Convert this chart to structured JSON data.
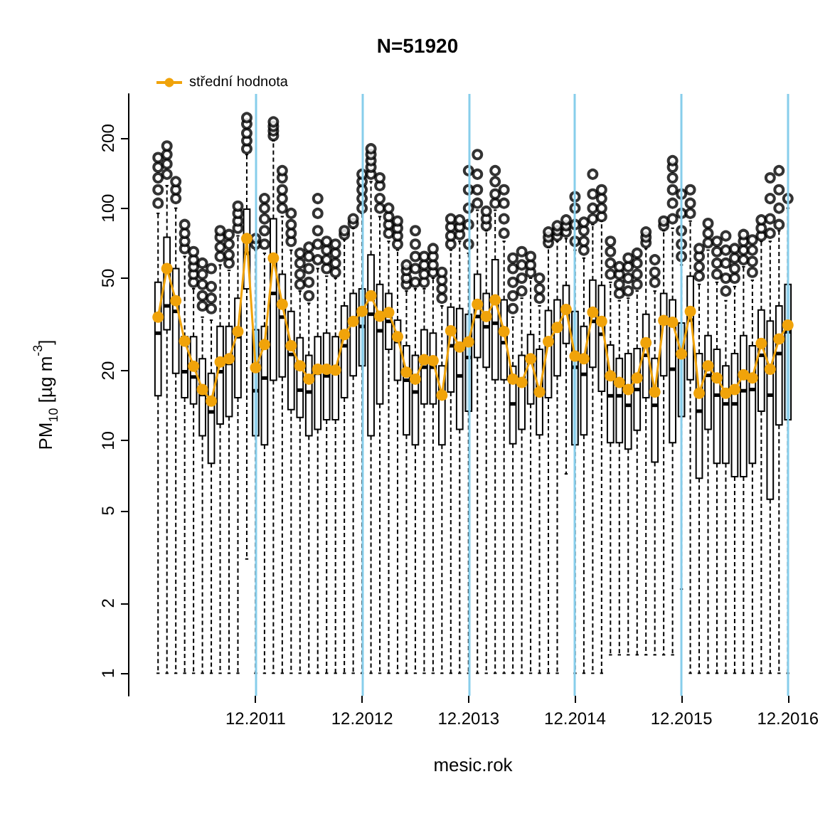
{
  "chart_data": {
    "type": "box",
    "title": "N=51920",
    "xlabel": "mesic.rok",
    "ylabel": "PM$_{10}$ [µg m$^{-3}$]",
    "categories": [
      null,
      null,
      null,
      null,
      null,
      null,
      null,
      null,
      null,
      null,
      null,
      "12.2011",
      null,
      null,
      null,
      null,
      null,
      null,
      null,
      null,
      null,
      null,
      null,
      "12.2012",
      null,
      null,
      null,
      null,
      null,
      null,
      null,
      null,
      null,
      null,
      null,
      "12.2013",
      null,
      null,
      null,
      null,
      null,
      null,
      null,
      null,
      null,
      null,
      null,
      "12.2014",
      null,
      null,
      null,
      null,
      null,
      null,
      null,
      null,
      null,
      null,
      null,
      "12.2015",
      null,
      null,
      null,
      null,
      null,
      null,
      null,
      null,
      null,
      null,
      null,
      "12.2016"
    ],
    "boxes": [
      {
        "low": 1,
        "q1": 15.6,
        "median": 29,
        "q3": 48,
        "high": 95,
        "outliers": [
          105,
          120,
          135,
          150,
          165
        ]
      },
      {
        "low": 1,
        "q1": 30,
        "median": 38,
        "q3": 75,
        "high": 125,
        "outliers": [
          140,
          155,
          170,
          185
        ]
      },
      {
        "low": 1,
        "q1": 19.5,
        "median": 36,
        "q3": 55,
        "high": 100,
        "outliers": [
          110,
          120,
          130
        ]
      },
      {
        "low": 1,
        "q1": 15.3,
        "median": 19.8,
        "q3": 28,
        "high": 62,
        "outliers": [
          67,
          72,
          78,
          85
        ]
      },
      {
        "low": 1,
        "q1": 14.4,
        "median": 18.8,
        "q3": 28,
        "high": 45,
        "outliers": [
          48,
          52,
          56,
          60,
          65
        ]
      },
      {
        "low": 1,
        "q1": 10.5,
        "median": 15.8,
        "q3": 22.5,
        "high": 34,
        "outliers": [
          38,
          42,
          47,
          52,
          58
        ]
      },
      {
        "low": 1,
        "q1": 8,
        "median": 13.3,
        "q3": 19.5,
        "high": 33,
        "outliers": [
          37,
          41,
          46,
          55
        ]
      },
      {
        "low": 1,
        "q1": 11.8,
        "median": 19.8,
        "q3": 31,
        "high": 57,
        "outliers": [
          62,
          68,
          75,
          80
        ]
      },
      {
        "low": 1,
        "q1": 12.7,
        "median": 21.5,
        "q3": 31,
        "high": 54,
        "outliers": [
          58,
          63,
          70,
          77
        ]
      },
      {
        "low": 1,
        "q1": 15.3,
        "median": 28,
        "q3": 41,
        "high": 76,
        "outliers": [
          82,
          88,
          95,
          102
        ]
      },
      {
        "low": 3.1,
        "q1": 45,
        "median": 64,
        "q3": 99,
        "high": 170,
        "outliers": [
          180,
          195,
          210,
          230,
          245
        ]
      },
      {
        "low": 1,
        "q1": 10.5,
        "median": 16.4,
        "q3": 30,
        "high": 66,
        "outliers": [
          70,
          74
        ]
      },
      {
        "low": 1,
        "q1": 9.6,
        "median": 18.6,
        "q3": 31,
        "high": 64,
        "outliers": [
          70,
          80,
          90,
          100,
          110
        ]
      },
      {
        "low": 1,
        "q1": 18.2,
        "median": 43,
        "q3": 90,
        "high": 195,
        "outliers": [
          205,
          215,
          225,
          235
        ]
      },
      {
        "low": 1,
        "q1": 18.8,
        "median": 34,
        "q3": 52,
        "high": 92,
        "outliers": [
          100,
          110,
          120,
          135,
          145
        ]
      },
      {
        "low": 1,
        "q1": 13.6,
        "median": 23.5,
        "q3": 36,
        "high": 66,
        "outliers": [
          72,
          78,
          85,
          95
        ]
      },
      {
        "low": 1,
        "q1": 12.6,
        "median": 16.5,
        "q3": 27.7,
        "high": 44,
        "outliers": [
          47,
          52,
          58,
          64
        ]
      },
      {
        "low": 1,
        "q1": 10.5,
        "median": 16.2,
        "q3": 23.3,
        "high": 39,
        "outliers": [
          42,
          48,
          55,
          62,
          68
        ]
      },
      {
        "low": 1,
        "q1": 11.2,
        "median": 19.5,
        "q3": 28,
        "high": 55,
        "outliers": [
          60,
          70,
          80,
          95,
          110
        ]
      },
      {
        "low": 1,
        "q1": 12.3,
        "median": 19,
        "q3": 29,
        "high": 51,
        "outliers": [
          55,
          60,
          66,
          72
        ]
      },
      {
        "low": 1,
        "q1": 12.3,
        "median": 19.5,
        "q3": 28,
        "high": 50,
        "outliers": [
          53,
          58,
          64,
          70
        ]
      },
      {
        "low": 1,
        "q1": 15.3,
        "median": 25.6,
        "q3": 38,
        "high": 73,
        "outliers": [
          77,
          80
        ]
      },
      {
        "low": 1,
        "q1": 19,
        "median": 33,
        "q3": 43,
        "high": 82,
        "outliers": [
          86,
          90
        ]
      },
      {
        "low": 1,
        "q1": 21,
        "median": 31,
        "q3": 45,
        "high": 95,
        "outliers": [
          100,
          110,
          120,
          130,
          140
        ]
      },
      {
        "low": 1,
        "q1": 10.5,
        "median": 35,
        "q3": 63,
        "high": 130,
        "outliers": [
          140,
          150,
          160,
          170,
          180
        ]
      },
      {
        "low": 1,
        "q1": 14.4,
        "median": 29.7,
        "q3": 47,
        "high": 92,
        "outliers": [
          100,
          110,
          125,
          135
        ]
      },
      {
        "low": 1,
        "q1": 24.7,
        "median": 32.6,
        "q3": 43,
        "high": 72,
        "outliers": [
          78,
          85,
          92,
          100
        ]
      },
      {
        "low": 1,
        "q1": 18.2,
        "median": 26.7,
        "q3": 33,
        "high": 66,
        "outliers": [
          70,
          76,
          82,
          88
        ]
      },
      {
        "low": 1,
        "q1": 10.6,
        "median": 18.2,
        "q3": 25.6,
        "high": 44,
        "outliers": [
          47,
          50,
          54,
          57
        ]
      },
      {
        "low": 1,
        "q1": 9.6,
        "median": 16.2,
        "q3": 23.3,
        "high": 45,
        "outliers": [
          48,
          55,
          62,
          70,
          80
        ]
      },
      {
        "low": 1,
        "q1": 14.4,
        "median": 20.7,
        "q3": 30,
        "high": 45,
        "outliers": [
          48,
          52,
          57,
          62
        ]
      },
      {
        "low": 1,
        "q1": 14.4,
        "median": 20.7,
        "q3": 29,
        "high": 50,
        "outliers": [
          53,
          57,
          62,
          67
        ]
      },
      {
        "low": 1,
        "q1": 9.6,
        "median": 15.6,
        "q3": 21,
        "high": 38,
        "outliers": [
          41,
          45,
          49,
          53
        ]
      },
      {
        "low": 1,
        "q1": 16.2,
        "median": 25.6,
        "q3": 37.5,
        "high": 66,
        "outliers": [
          70,
          76,
          83,
          90
        ]
      },
      {
        "low": 1,
        "q1": 11.2,
        "median": 19,
        "q3": 37,
        "high": 72,
        "outliers": [
          77,
          83,
          89
        ]
      },
      {
        "low": 1,
        "q1": 13.4,
        "median": 22.8,
        "q3": 35,
        "high": 64,
        "outliers": [
          70,
          85,
          100,
          120,
          145
        ]
      },
      {
        "low": 1,
        "q1": 22.8,
        "median": 34.2,
        "q3": 52,
        "high": 98,
        "outliers": [
          105,
          120,
          140,
          170
        ]
      },
      {
        "low": 1,
        "q1": 20.7,
        "median": 30.9,
        "q3": 43,
        "high": 80,
        "outliers": [
          84,
          90,
          97
        ]
      },
      {
        "low": 1,
        "q1": 18.3,
        "median": 32,
        "q3": 60,
        "high": 98,
        "outliers": [
          105,
          115,
          130,
          145
        ]
      },
      {
        "low": 1,
        "q1": 18.3,
        "median": 26.4,
        "q3": 40.3,
        "high": 72,
        "outliers": [
          78,
          90,
          105,
          120
        ]
      },
      {
        "low": 1,
        "q1": 9.7,
        "median": 14.4,
        "q3": 20.9,
        "high": 34,
        "outliers": [
          37,
          42,
          48,
          55,
          61
        ]
      },
      {
        "low": 1,
        "q1": 11.2,
        "median": 18.2,
        "q3": 23.3,
        "high": 41,
        "outliers": [
          44,
          50,
          57,
          65
        ]
      },
      {
        "low": 1,
        "q1": 14.4,
        "median": 21.9,
        "q3": 28.6,
        "high": 50,
        "outliers": [
          53,
          57,
          62
        ]
      },
      {
        "low": 1,
        "q1": 10.6,
        "median": 15.9,
        "q3": 24.7,
        "high": 38,
        "outliers": [
          41,
          45,
          50
        ]
      },
      {
        "low": 1,
        "q1": 15.3,
        "median": 26.7,
        "q3": 36.3,
        "high": 68,
        "outliers": [
          71,
          75,
          79
        ]
      },
      {
        "low": 1,
        "q1": 19,
        "median": 31.3,
        "q3": 40.3,
        "high": 72,
        "outliers": [
          76,
          80,
          84
        ]
      },
      {
        "low": 7.2,
        "q1": 26.2,
        "median": 35.5,
        "q3": 46.5,
        "high": 74,
        "outliers": [
          79,
          84,
          89
        ]
      },
      {
        "low": 1,
        "q1": 9.6,
        "median": 20.7,
        "q3": 36,
        "high": 66,
        "outliers": [
          72,
          85,
          100,
          112
        ]
      },
      {
        "low": 1,
        "q1": 10.6,
        "median": 19.3,
        "q3": 31,
        "high": 61,
        "outliers": [
          66,
          72,
          80,
          87
        ]
      },
      {
        "low": 1,
        "q1": 20.7,
        "median": 32.6,
        "q3": 49,
        "high": 85,
        "outliers": [
          90,
          100,
          115,
          140
        ]
      },
      {
        "low": 1,
        "q1": 16.3,
        "median": 28.7,
        "q3": 46.5,
        "high": 88,
        "outliers": [
          92,
          100,
          110,
          120
        ]
      },
      {
        "low": 1.2,
        "q1": 9.8,
        "median": 15.6,
        "q3": 25.8,
        "high": 48,
        "outliers": [
          52,
          58,
          65,
          72
        ]
      },
      {
        "low": 1.2,
        "q1": 9.8,
        "median": 15.6,
        "q3": 22.6,
        "high": 40,
        "outliers": [
          43,
          47,
          52,
          56
        ]
      },
      {
        "low": 1.2,
        "q1": 9.2,
        "median": 14.2,
        "q3": 23.7,
        "high": 41,
        "outliers": [
          44,
          50,
          56,
          61
        ]
      },
      {
        "low": 1.2,
        "q1": 11.1,
        "median": 16.6,
        "q3": 24.9,
        "high": 44,
        "outliers": [
          47,
          52,
          58,
          64
        ]
      },
      {
        "low": 1.2,
        "q1": 15.3,
        "median": 23.3,
        "q3": 35,
        "high": 67,
        "outliers": [
          71,
          75,
          79
        ]
      },
      {
        "low": 1.2,
        "q1": 8.1,
        "median": 14.2,
        "q3": 22.6,
        "high": 44,
        "outliers": [
          48,
          53,
          60
        ]
      },
      {
        "low": 1.2,
        "q1": 19,
        "median": 32.6,
        "q3": 43,
        "high": 80,
        "outliers": [
          84,
          88
        ]
      },
      {
        "low": 1.2,
        "q1": 9.8,
        "median": 20.3,
        "q3": 40.3,
        "high": 82,
        "outliers": [
          90,
          105,
          120,
          135,
          150,
          160
        ]
      },
      {
        "low": 2.3,
        "q1": 12.7,
        "median": 23,
        "q3": 32.1,
        "high": 57,
        "outliers": [
          62,
          70,
          80,
          95,
          115
        ]
      },
      {
        "low": 1,
        "q1": 18.3,
        "median": 33,
        "q3": 51,
        "high": 88,
        "outliers": [
          95,
          105,
          120
        ]
      },
      {
        "low": 1,
        "q1": 6.9,
        "median": 13.4,
        "q3": 23.7,
        "high": 47,
        "outliers": [
          51,
          56,
          62,
          67
        ]
      },
      {
        "low": 1,
        "q1": 11.2,
        "median": 19.1,
        "q3": 28.3,
        "high": 66,
        "outliers": [
          71,
          78,
          86
        ]
      },
      {
        "low": 1,
        "q1": 8,
        "median": 15.7,
        "q3": 24.7,
        "high": 48,
        "outliers": [
          52,
          58,
          65,
          72
        ]
      },
      {
        "low": 1,
        "q1": 8,
        "median": 14.4,
        "q3": 21,
        "high": 40,
        "outliers": [
          44,
          50,
          58,
          66,
          76
        ]
      },
      {
        "low": 1,
        "q1": 7,
        "median": 14.4,
        "q3": 23.7,
        "high": 46,
        "outliers": [
          50,
          55,
          61,
          67
        ]
      },
      {
        "low": 1,
        "q1": 7,
        "median": 16.4,
        "q3": 28.3,
        "high": 56,
        "outliers": [
          60,
          66,
          72,
          77
        ]
      },
      {
        "low": 1,
        "q1": 8,
        "median": 16.6,
        "q3": 25.6,
        "high": 49,
        "outliers": [
          53,
          59,
          66,
          73
        ]
      },
      {
        "low": 1,
        "q1": 13.4,
        "median": 23.3,
        "q3": 36.5,
        "high": 72,
        "outliers": [
          76,
          82,
          89
        ]
      },
      {
        "low": 1,
        "q1": 5.6,
        "median": 15.7,
        "q3": 32.7,
        "high": 72,
        "outliers": [
          78,
          90,
          110,
          135
        ]
      },
      {
        "low": 1,
        "q1": 11.7,
        "median": 23.7,
        "q3": 38,
        "high": 80,
        "outliers": [
          85,
          100,
          120,
          145
        ]
      },
      {
        "low": 1,
        "q1": 12.3,
        "median": 29.4,
        "q3": 47,
        "high": 100,
        "outliers": [
          110
        ]
      }
    ],
    "colors": [
      "#ffffff",
      "#ffffff",
      "#ffffff",
      "#ffffff",
      "#ffffff",
      "#ffffff",
      "#ffffff",
      "#ffffff",
      "#ffffff",
      "#ffffff",
      "#ffffff",
      "#cde7f2",
      "#ffffff",
      "#ffffff",
      "#ffffff",
      "#ffffff",
      "#ffffff",
      "#ffffff",
      "#ffffff",
      "#ffffff",
      "#ffffff",
      "#ffffff",
      "#ffffff",
      "#cde7f2",
      "#ffffff",
      "#ffffff",
      "#ffffff",
      "#ffffff",
      "#ffffff",
      "#ffffff",
      "#ffffff",
      "#ffffff",
      "#ffffff",
      "#ffffff",
      "#ffffff",
      "#cde7f2",
      "#ffffff",
      "#ffffff",
      "#ffffff",
      "#ffffff",
      "#ffffff",
      "#ffffff",
      "#ffffff",
      "#ffffff",
      "#ffffff",
      "#ffffff",
      "#ffffff",
      "#cde7f2",
      "#ffffff",
      "#ffffff",
      "#ffffff",
      "#ffffff",
      "#ffffff",
      "#ffffff",
      "#ffffff",
      "#ffffff",
      "#ffffff",
      "#ffffff",
      "#ffffff",
      "#cde7f2",
      "#ffffff",
      "#ffffff",
      "#ffffff",
      "#ffffff",
      "#ffffff",
      "#ffffff",
      "#ffffff",
      "#ffffff",
      "#ffffff",
      "#ffffff",
      "#ffffff",
      "#cde7f2"
    ],
    "series": [
      {
        "type": "line",
        "name": "střední hodnota",
        "color": "#f0a30a",
        "marker": "circle",
        "values": [
          34,
          55,
          40,
          26.8,
          20.9,
          16.6,
          14.8,
          21.8,
          22.5,
          29.5,
          74,
          20.6,
          25.9,
          61,
          38.6,
          25.6,
          21,
          18.4,
          20.3,
          20.3,
          20.1,
          28.6,
          32.6,
          36,
          42,
          34.3,
          35.6,
          28,
          19.7,
          18.4,
          22.3,
          22.1,
          15.7,
          29.7,
          25.3,
          26.6,
          38.6,
          34.2,
          40.3,
          29.5,
          18.4,
          17.8,
          22.5,
          16.2,
          26.7,
          30.7,
          36.7,
          23.1,
          22.5,
          35.7,
          32.6,
          19,
          17.8,
          16.6,
          18.6,
          26.4,
          16.2,
          32.9,
          32.3,
          23.6,
          36,
          16,
          21,
          18.6,
          16,
          16.6,
          19.2,
          18.6,
          26.2,
          20.3,
          27.4,
          31.4
        ]
      }
    ],
    "log": true,
    "ylim": [
      0.8,
      310
    ],
    "yticks": [
      1,
      2,
      5,
      10,
      20,
      50,
      100,
      200
    ],
    "grid": false,
    "legend": "top left",
    "ref_lines": [
      {
        "axis": "x",
        "value": "12.2011",
        "color": "#87ceeb"
      },
      {
        "axis": "x",
        "value": "12.2012",
        "color": "#87ceeb"
      },
      {
        "axis": "x",
        "value": "12.2013",
        "color": "#87ceeb"
      },
      {
        "axis": "x",
        "value": "12.2014",
        "color": "#87ceeb"
      },
      {
        "axis": "x",
        "value": "12.2015",
        "color": "#87ceeb"
      },
      {
        "axis": "x",
        "value": "12.2016",
        "color": "#87ceeb"
      }
    ]
  }
}
